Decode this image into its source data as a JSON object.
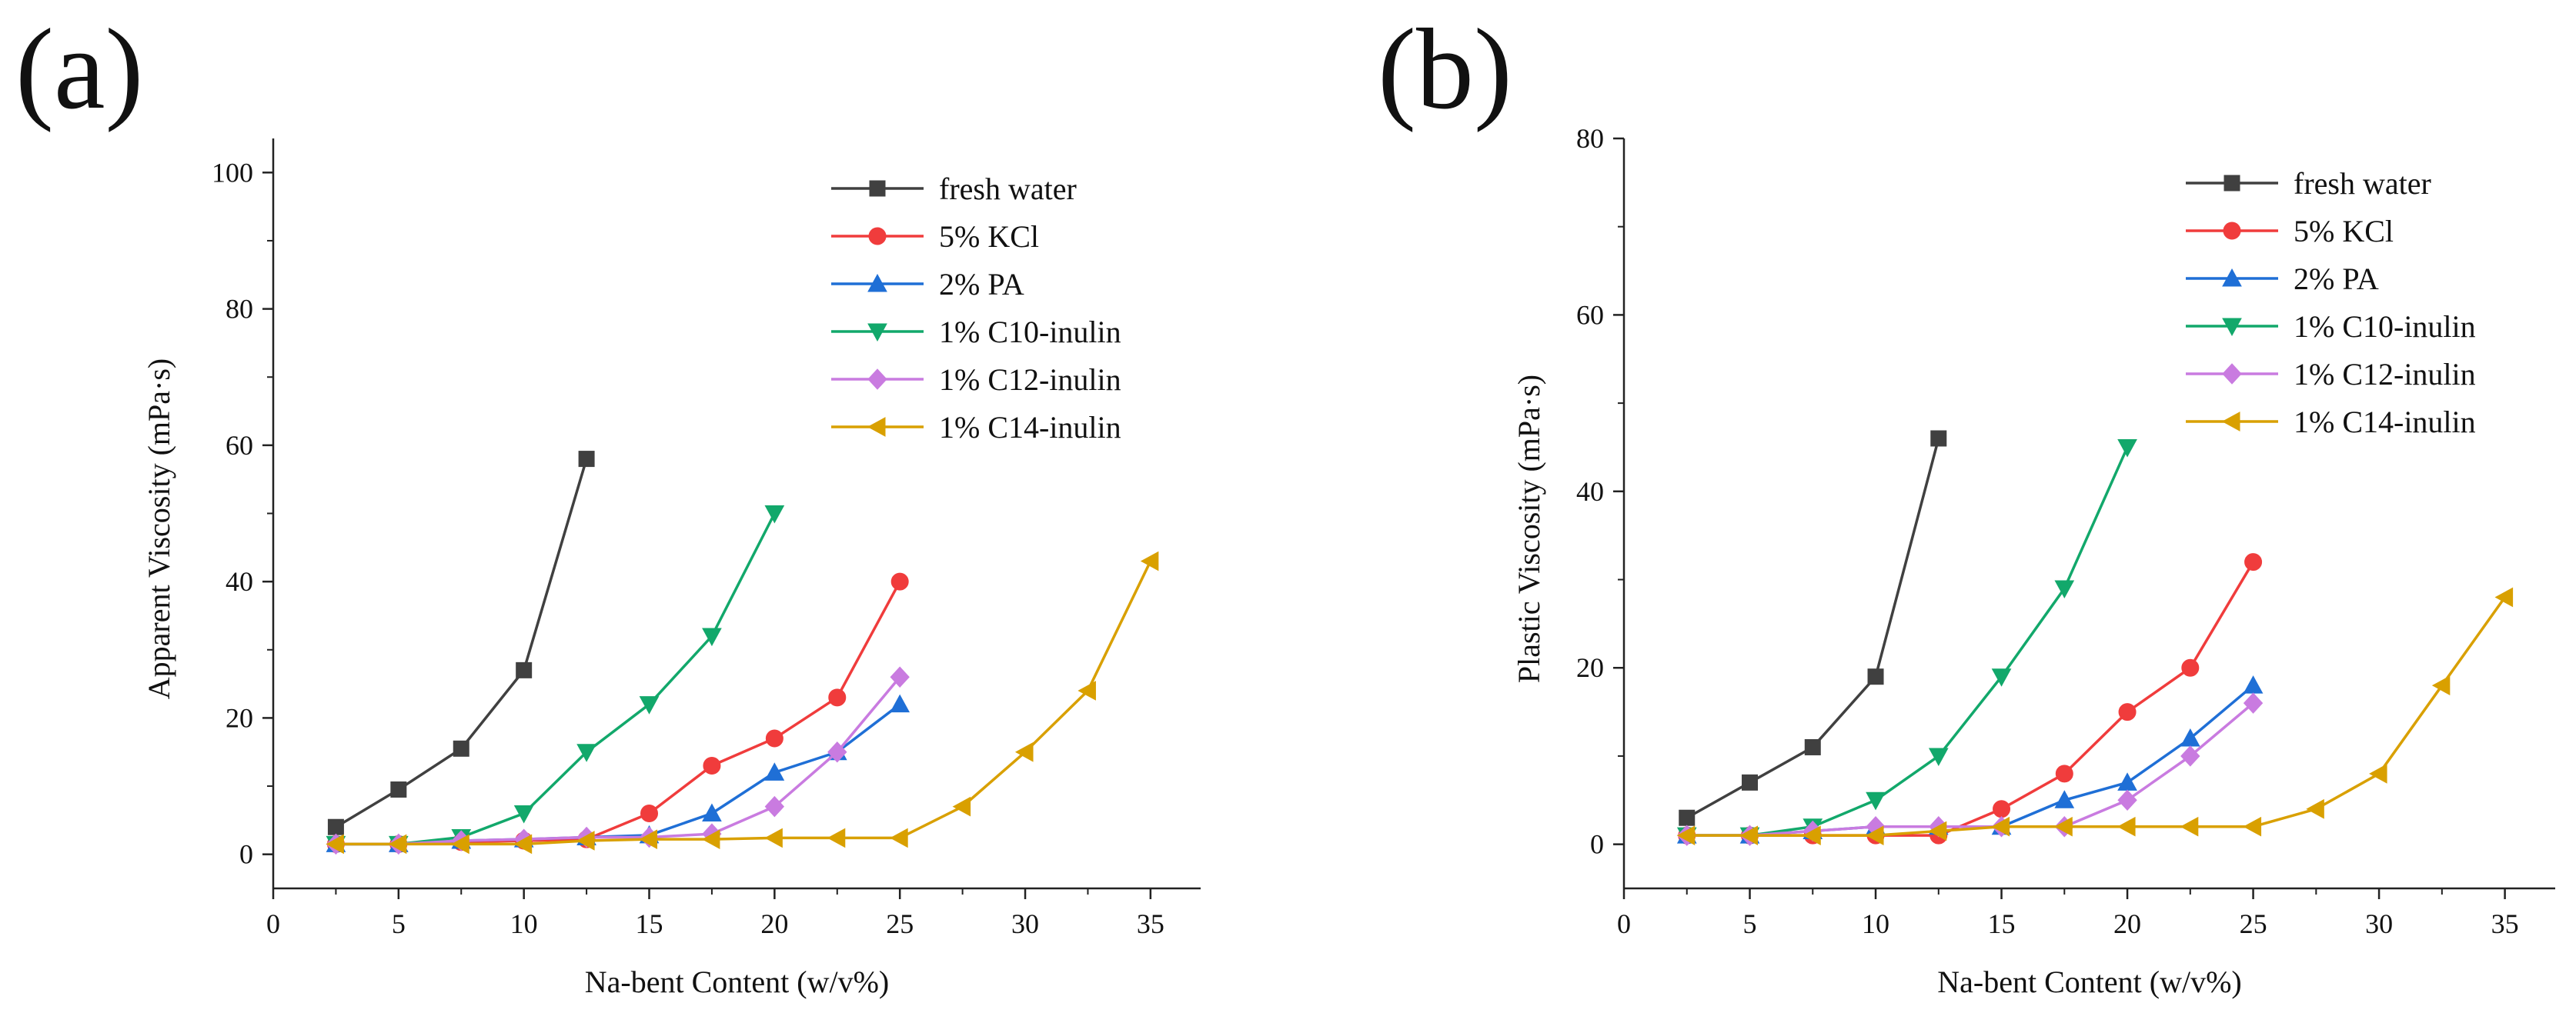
{
  "chart_data": [
    {
      "panel_label": "(a)",
      "type": "line",
      "title": "",
      "xlabel": "Na-bent Content (w/v%)",
      "ylabel": "Apparent Viscosity (mPa·s)",
      "xlim": [
        0,
        37
      ],
      "ylim": [
        -5,
        105
      ],
      "xticks": [
        0,
        5,
        10,
        15,
        20,
        25,
        30,
        35
      ],
      "yticks": [
        0,
        20,
        40,
        60,
        80,
        100
      ],
      "legend_position": "top-right",
      "series": [
        {
          "name": "fresh water",
          "color": "#404040",
          "marker": "square",
          "x": [
            2.5,
            5,
            7.5,
            10,
            12.5
          ],
          "y": [
            4,
            9.5,
            15.5,
            27,
            58
          ]
        },
        {
          "name": "5% KCl",
          "color": "#f03c3c",
          "marker": "circle",
          "x": [
            2.5,
            5,
            7.5,
            10,
            12.5,
            15,
            17.5,
            20,
            22.5,
            25
          ],
          "y": [
            1.5,
            1.5,
            1.8,
            2,
            2.2,
            6,
            13,
            17,
            23,
            40
          ]
        },
        {
          "name": "2% PA",
          "color": "#1f6fd6",
          "marker": "triangle-up",
          "x": [
            2.5,
            5,
            7.5,
            10,
            12.5,
            15,
            17.5,
            20,
            22.5,
            25
          ],
          "y": [
            1.5,
            1.5,
            2,
            2.2,
            2.5,
            2.8,
            6,
            12,
            15,
            22
          ]
        },
        {
          "name": "1% C10-inulin",
          "color": "#12a86b",
          "marker": "triangle-down",
          "x": [
            2.5,
            5,
            7.5,
            10,
            12.5,
            15,
            17.5,
            20
          ],
          "y": [
            1.5,
            1.5,
            2.5,
            6,
            15,
            22,
            32,
            50
          ]
        },
        {
          "name": "1% C12-inulin",
          "color": "#c97be0",
          "marker": "diamond",
          "x": [
            2.5,
            5,
            7.5,
            10,
            12.5,
            15,
            17.5,
            20,
            22.5,
            25
          ],
          "y": [
            1.5,
            1.5,
            2,
            2.2,
            2.5,
            2.5,
            3,
            7,
            15,
            26
          ]
        },
        {
          "name": "1% C14-inulin",
          "color": "#d9a000",
          "marker": "triangle-left",
          "x": [
            2.5,
            5,
            7.5,
            10,
            12.5,
            15,
            17.5,
            20,
            22.5,
            25,
            27.5,
            30,
            32.5,
            35
          ],
          "y": [
            1.5,
            1.5,
            1.5,
            1.5,
            2,
            2.2,
            2.2,
            2.4,
            2.4,
            2.4,
            7,
            15,
            24,
            43
          ]
        }
      ]
    },
    {
      "panel_label": "(b)",
      "type": "line",
      "title": "",
      "xlabel": "Na-bent Content (w/v%)",
      "ylabel": "Plastic Viscosity (mPa·s)",
      "xlim": [
        0,
        37
      ],
      "ylim": [
        -5,
        80
      ],
      "xticks": [
        0,
        5,
        10,
        15,
        20,
        25,
        30,
        35
      ],
      "yticks": [
        0,
        20,
        40,
        60,
        80
      ],
      "legend_position": "top-right",
      "series": [
        {
          "name": "fresh water",
          "color": "#404040",
          "marker": "square",
          "x": [
            2.5,
            5,
            7.5,
            10,
            12.5
          ],
          "y": [
            3,
            7,
            11,
            19,
            46
          ]
        },
        {
          "name": "5% KCl",
          "color": "#f03c3c",
          "marker": "circle",
          "x": [
            2.5,
            5,
            7.5,
            10,
            12.5,
            15,
            17.5,
            20,
            22.5,
            25
          ],
          "y": [
            1,
            1,
            1,
            1,
            1,
            4,
            8,
            15,
            20,
            32
          ]
        },
        {
          "name": "2% PA",
          "color": "#1f6fd6",
          "marker": "triangle-up",
          "x": [
            2.5,
            5,
            7.5,
            10,
            12.5,
            15,
            17.5,
            20,
            22.5,
            25
          ],
          "y": [
            1,
            1,
            1.5,
            2,
            2,
            2,
            5,
            7,
            12,
            18
          ]
        },
        {
          "name": "1% C10-inulin",
          "color": "#12a86b",
          "marker": "triangle-down",
          "x": [
            2.5,
            5,
            7.5,
            10,
            12.5,
            15,
            17.5,
            20
          ],
          "y": [
            1,
            1,
            2,
            5,
            10,
            19,
            29,
            45
          ]
        },
        {
          "name": "1% C12-inulin",
          "color": "#c97be0",
          "marker": "diamond",
          "x": [
            2.5,
            5,
            7.5,
            10,
            12.5,
            15,
            17.5,
            20,
            22.5,
            25
          ],
          "y": [
            1,
            1,
            1.5,
            2,
            2,
            2,
            2,
            5,
            10,
            16
          ]
        },
        {
          "name": "1% C14-inulin",
          "color": "#d9a000",
          "marker": "triangle-left",
          "x": [
            2.5,
            5,
            7.5,
            10,
            12.5,
            15,
            17.5,
            20,
            22.5,
            25,
            27.5,
            30,
            32.5,
            35
          ],
          "y": [
            1,
            1,
            1,
            1,
            1.5,
            2,
            2,
            2,
            2,
            2,
            4,
            8,
            18,
            28
          ]
        }
      ]
    }
  ]
}
